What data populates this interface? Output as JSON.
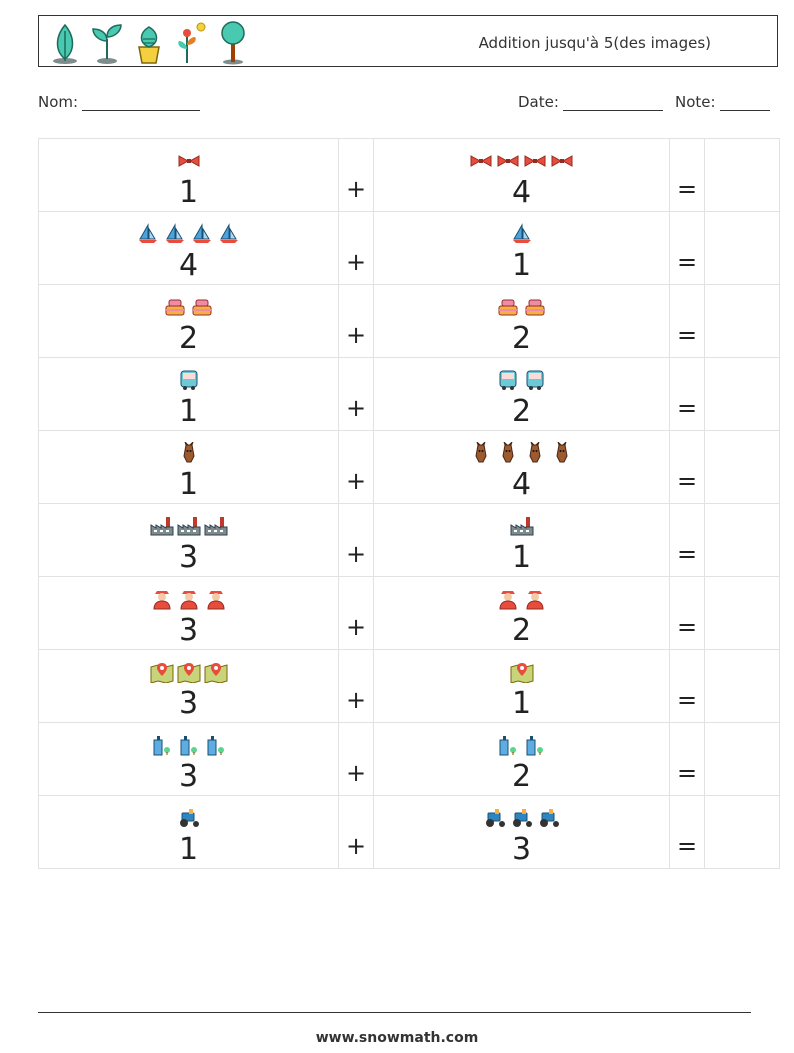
{
  "header": {
    "title": "Addition jusqu'à 5(des images)",
    "plant_icons": [
      "leaf-plant-icon",
      "sprout-icon",
      "potted-plant-icon",
      "flower-sun-icon",
      "tree-icon"
    ]
  },
  "fields": {
    "name_label": "Nom:",
    "date_label": "Date:",
    "score_label": "Note:"
  },
  "operators": {
    "plus": "+",
    "equals": "="
  },
  "colors": {
    "bowtie": "#e74c3c",
    "boat": "#4aa3df",
    "cake": "#f08aa8",
    "bus": "#6ccad7",
    "horse": "#9c5a2f",
    "factory": "#7f8c8d",
    "person": "#e74c3c",
    "map": "#c8d47a",
    "building": "#5dade2",
    "tractor": "#2e86c1"
  },
  "problems": [
    {
      "icon": "bowtie-icon",
      "a": "1",
      "b": "4",
      "a_count": 1,
      "b_count": 4
    },
    {
      "icon": "sailboat-icon",
      "a": "4",
      "b": "1",
      "a_count": 4,
      "b_count": 1
    },
    {
      "icon": "cake-icon",
      "a": "2",
      "b": "2",
      "a_count": 2,
      "b_count": 2
    },
    {
      "icon": "bus-icon",
      "a": "1",
      "b": "2",
      "a_count": 1,
      "b_count": 2
    },
    {
      "icon": "horse-icon",
      "a": "1",
      "b": "4",
      "a_count": 1,
      "b_count": 4
    },
    {
      "icon": "factory-icon",
      "a": "3",
      "b": "1",
      "a_count": 3,
      "b_count": 1
    },
    {
      "icon": "firefighter-icon",
      "a": "3",
      "b": "2",
      "a_count": 3,
      "b_count": 2
    },
    {
      "icon": "map-pin-icon",
      "a": "3",
      "b": "1",
      "a_count": 3,
      "b_count": 1
    },
    {
      "icon": "building-icon",
      "a": "3",
      "b": "2",
      "a_count": 3,
      "b_count": 2
    },
    {
      "icon": "tractor-icon",
      "a": "1",
      "b": "3",
      "a_count": 1,
      "b_count": 3
    }
  ],
  "footer": {
    "website": "www.snowmath.com"
  }
}
